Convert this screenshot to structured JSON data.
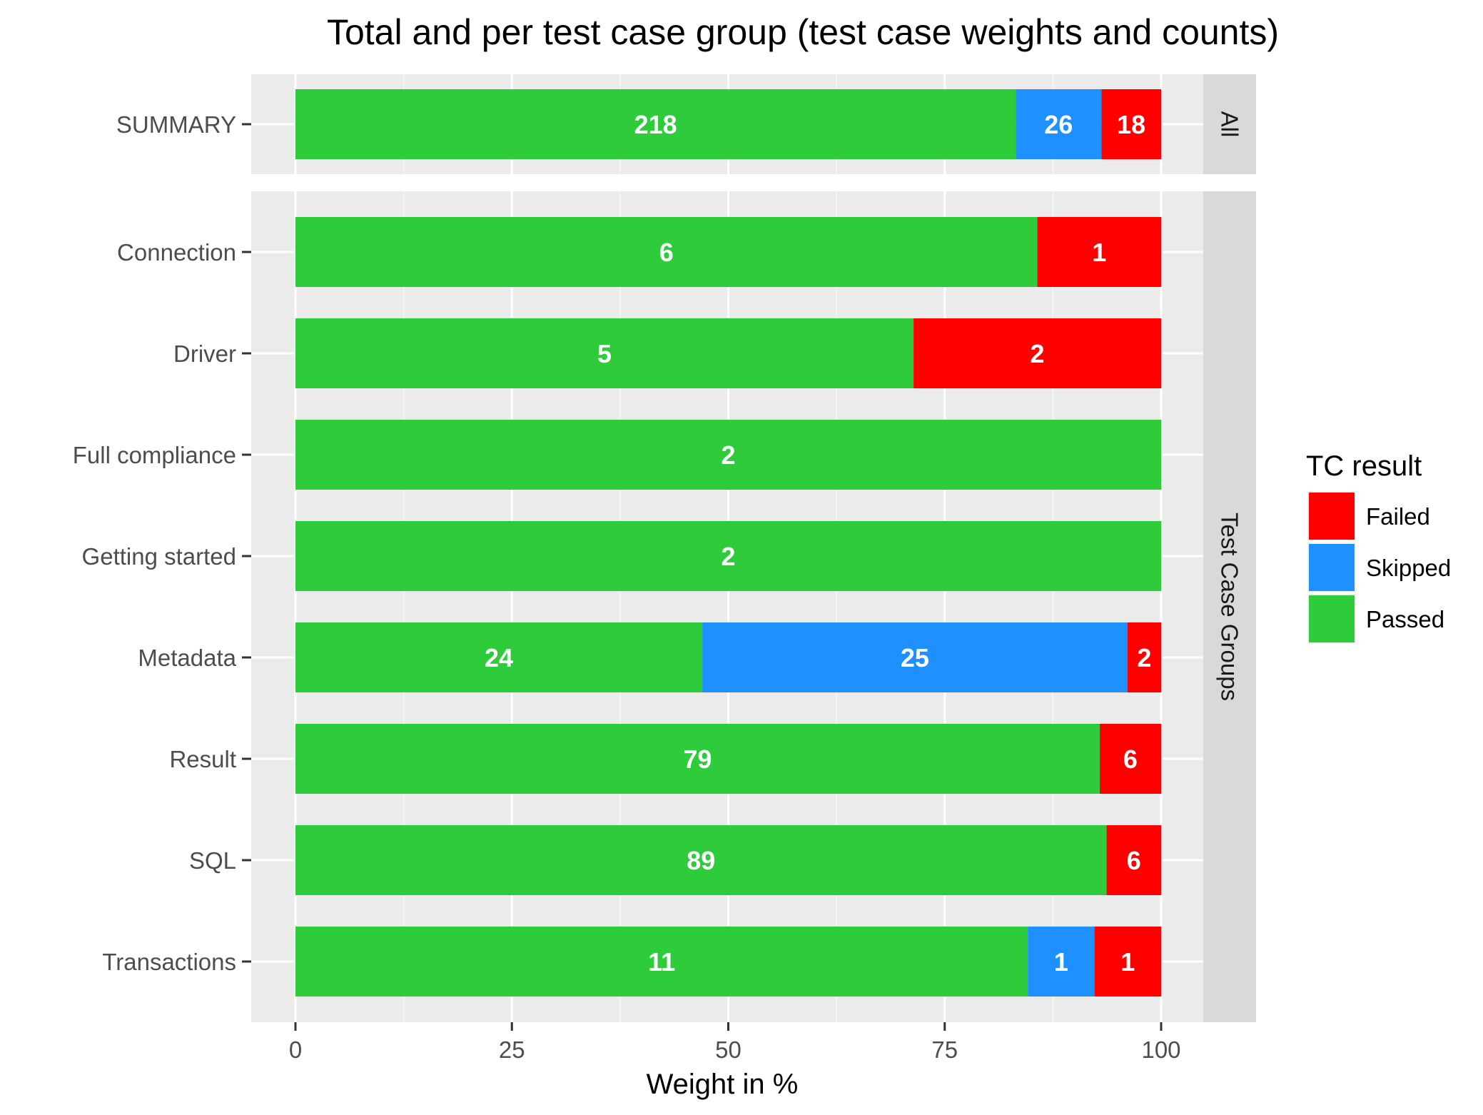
{
  "chart_data": {
    "type": "bar",
    "orientation": "horizontal",
    "stacked": true,
    "title": "Total and per test case group (test case weights and counts)",
    "xlabel": "Weight in %",
    "ylabel": "",
    "xlim": [
      0,
      100
    ],
    "x_ticks": [
      "0",
      "25",
      "50",
      "75",
      "100"
    ],
    "x_tick_values": [
      0,
      25,
      50,
      75,
      100
    ],
    "grid": true,
    "legend": {
      "title": "TC result",
      "placement": "right",
      "entries": [
        {
          "name": "Failed",
          "color": "#FF0000"
        },
        {
          "name": "Skipped",
          "color": "#1E90FF"
        },
        {
          "name": "Passed",
          "color": "#2ECC3A"
        }
      ]
    },
    "colors": {
      "Passed": "#2ECC3A",
      "Skipped": "#1E90FF",
      "Failed": "#FF0000"
    },
    "panels": [
      {
        "strip": "All",
        "categories": [
          {
            "label": "SUMMARY",
            "segments": [
              {
                "result": "Passed",
                "value": 83.2,
                "count": "218"
              },
              {
                "result": "Skipped",
                "value": 9.9,
                "count": "26"
              },
              {
                "result": "Failed",
                "value": 6.9,
                "count": "18"
              }
            ]
          }
        ]
      },
      {
        "strip": "Test Case Groups",
        "categories": [
          {
            "label": "Connection",
            "segments": [
              {
                "result": "Passed",
                "value": 85.7,
                "count": "6"
              },
              {
                "result": "Failed",
                "value": 14.3,
                "count": "1"
              }
            ]
          },
          {
            "label": "Driver",
            "segments": [
              {
                "result": "Passed",
                "value": 71.4,
                "count": "5"
              },
              {
                "result": "Failed",
                "value": 28.6,
                "count": "2"
              }
            ]
          },
          {
            "label": "Full compliance",
            "segments": [
              {
                "result": "Passed",
                "value": 100,
                "count": "2"
              }
            ]
          },
          {
            "label": "Getting started",
            "segments": [
              {
                "result": "Passed",
                "value": 100,
                "count": "2"
              }
            ]
          },
          {
            "label": "Metadata",
            "segments": [
              {
                "result": "Passed",
                "value": 47.0,
                "count": "24"
              },
              {
                "result": "Skipped",
                "value": 49.1,
                "count": "25"
              },
              {
                "result": "Failed",
                "value": 3.9,
                "count": "2"
              }
            ]
          },
          {
            "label": "Result",
            "segments": [
              {
                "result": "Passed",
                "value": 92.9,
                "count": "79"
              },
              {
                "result": "Failed",
                "value": 7.1,
                "count": "6"
              }
            ]
          },
          {
            "label": "SQL",
            "segments": [
              {
                "result": "Passed",
                "value": 93.7,
                "count": "89"
              },
              {
                "result": "Failed",
                "value": 6.3,
                "count": "6"
              }
            ]
          },
          {
            "label": "Transactions",
            "segments": [
              {
                "result": "Passed",
                "value": 84.6,
                "count": "11"
              },
              {
                "result": "Skipped",
                "value": 7.7,
                "count": "1"
              },
              {
                "result": "Failed",
                "value": 7.7,
                "count": "1"
              }
            ]
          }
        ]
      }
    ]
  }
}
